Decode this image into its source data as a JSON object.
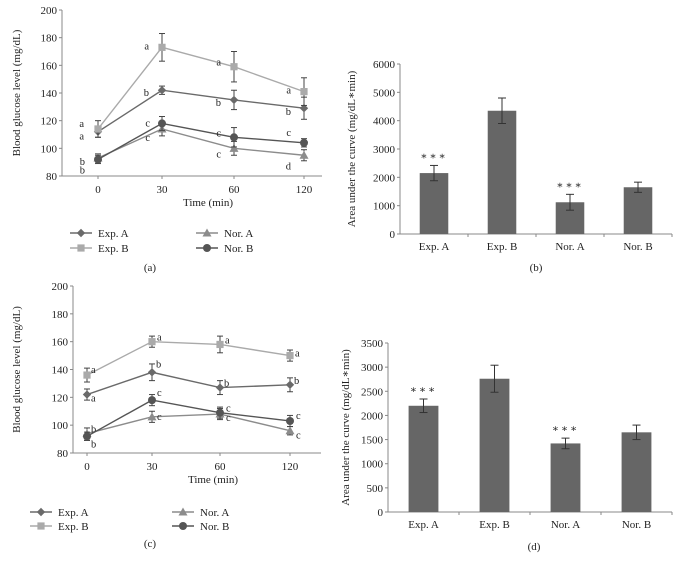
{
  "chart_data": [
    {
      "panel": "(a)",
      "type": "line",
      "ylabel": "Blood glucose level (mg/dL)",
      "xlabel": "Time (min)",
      "x": [
        0,
        30,
        60,
        120
      ],
      "x_tick_labels": [
        "0",
        "30",
        "60",
        "120"
      ],
      "ylim": [
        80,
        200
      ],
      "yticks": [
        80,
        100,
        120,
        140,
        160,
        180,
        200
      ],
      "series": [
        {
          "name": "Exp. A",
          "marker": "diamond",
          "color": "#6a6a6a",
          "values": [
            112,
            142,
            135,
            129
          ],
          "errors": [
            4,
            3,
            7,
            8
          ],
          "letters": [
            "a",
            "b",
            "b",
            "b"
          ]
        },
        {
          "name": "Exp. B",
          "marker": "square",
          "color": "#aaaaaa",
          "values": [
            114,
            173,
            159,
            141
          ],
          "errors": [
            6,
            10,
            11,
            10
          ],
          "letters": [
            "a",
            "a",
            "a",
            "a"
          ]
        },
        {
          "name": "Nor. A",
          "marker": "triangle",
          "color": "#8c8c8c",
          "values": [
            93,
            114,
            100,
            95
          ],
          "errors": [
            3,
            5,
            5,
            4
          ],
          "letters": [
            "b",
            "c",
            "c",
            "d"
          ]
        },
        {
          "name": "Nor. B",
          "marker": "circle",
          "color": "#555555",
          "values": [
            92,
            118,
            108,
            104
          ],
          "errors": [
            3,
            5,
            7,
            3
          ],
          "letters": [
            "b",
            "c",
            "c",
            "c"
          ]
        }
      ]
    },
    {
      "panel": "(b)",
      "type": "bar",
      "ylabel": "Area under the curve (mg/dL∗min)",
      "categories": [
        "Exp. A",
        "Exp. B",
        "Nor. A",
        "Nor. B"
      ],
      "values": [
        2150,
        4350,
        1120,
        1650
      ],
      "errors": [
        270,
        450,
        280,
        180
      ],
      "annotations": [
        "∗∗∗",
        "",
        "∗∗∗",
        ""
      ],
      "ylim": [
        0,
        6000
      ],
      "yticks": [
        0,
        1000,
        2000,
        3000,
        4000,
        5000,
        6000
      ],
      "bar_color": "#666666"
    },
    {
      "panel": "(c)",
      "type": "line",
      "ylabel": "Blood glucose level (mg/dL)",
      "xlabel": "Time (min)",
      "x": [
        0,
        30,
        60,
        120
      ],
      "x_tick_labels": [
        "0",
        "30",
        "60",
        "120"
      ],
      "ylim": [
        80,
        200
      ],
      "yticks": [
        80,
        100,
        120,
        140,
        160,
        180,
        200
      ],
      "series": [
        {
          "name": "Exp. A",
          "marker": "diamond",
          "color": "#6a6a6a",
          "values": [
            122,
            138,
            127,
            129
          ],
          "errors": [
            4,
            6,
            5,
            5
          ],
          "letters": [
            "a",
            "b",
            "b",
            "b"
          ]
        },
        {
          "name": "Exp. B",
          "marker": "square",
          "color": "#aaaaaa",
          "values": [
            136,
            160,
            158,
            150
          ],
          "errors": [
            5,
            4,
            6,
            4
          ],
          "letters": [
            "a",
            "a",
            "a",
            "a"
          ]
        },
        {
          "name": "Nor. A",
          "marker": "triangle",
          "color": "#8c8c8c",
          "values": [
            94,
            106,
            108,
            96
          ],
          "errors": [
            4,
            4,
            4,
            3
          ],
          "letters": [
            "b",
            "c",
            "c",
            "c"
          ]
        },
        {
          "name": "Nor. B",
          "marker": "circle",
          "color": "#555555",
          "values": [
            92,
            118,
            109,
            103
          ],
          "errors": [
            3,
            4,
            4,
            4
          ],
          "letters": [
            "b",
            "c",
            "c",
            "c"
          ]
        }
      ]
    },
    {
      "panel": "(d)",
      "type": "bar",
      "ylabel": "Area under the curve (mg/dL∗min)",
      "categories": [
        "Exp. A",
        "Exp. B",
        "Nor. A",
        "Nor. B"
      ],
      "values": [
        2200,
        2760,
        1420,
        1650
      ],
      "errors": [
        140,
        280,
        110,
        150
      ],
      "annotations": [
        "∗∗∗",
        "",
        "∗∗∗",
        ""
      ],
      "ylim": [
        0,
        3500
      ],
      "yticks": [
        0,
        500,
        1000,
        1500,
        2000,
        2500,
        3000,
        3500
      ],
      "bar_color": "#666666"
    }
  ]
}
